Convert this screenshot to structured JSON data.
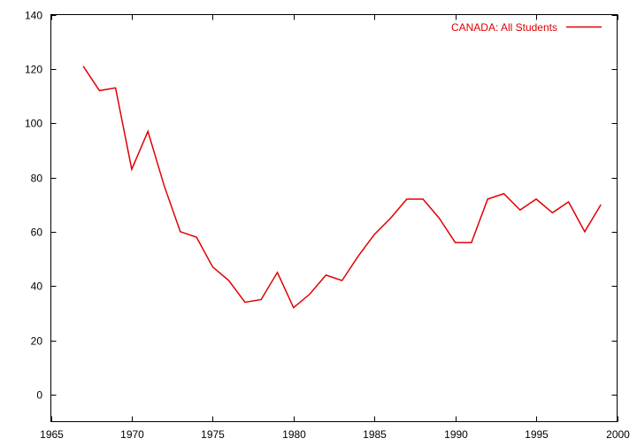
{
  "chart_data": {
    "type": "line",
    "title": "",
    "xlabel": "",
    "ylabel": "",
    "xlim": [
      1965,
      2000
    ],
    "ylim": [
      -10,
      140
    ],
    "xticks": [
      1965,
      1970,
      1975,
      1980,
      1985,
      1990,
      1995,
      2000
    ],
    "yticks": [
      0,
      20,
      40,
      60,
      80,
      100,
      120,
      140
    ],
    "grid": false,
    "legend_position": "top-right",
    "series": [
      {
        "name": "CANADA: All Students",
        "color": "#e00000",
        "x": [
          1967,
          1968,
          1969,
          1970,
          1971,
          1972,
          1973,
          1974,
          1975,
          1976,
          1977,
          1978,
          1979,
          1980,
          1981,
          1982,
          1983,
          1984,
          1985,
          1986,
          1987,
          1988,
          1989,
          1990,
          1991,
          1992,
          1993,
          1994,
          1995,
          1996,
          1997,
          1998,
          1999
        ],
        "y": [
          121,
          112,
          113,
          83,
          97,
          77,
          60,
          58,
          47,
          42,
          34,
          35,
          45,
          32,
          37,
          44,
          42,
          51,
          59,
          65,
          72,
          72,
          65,
          56,
          56,
          72,
          74,
          68,
          72,
          67,
          71,
          60,
          70
        ]
      }
    ]
  }
}
